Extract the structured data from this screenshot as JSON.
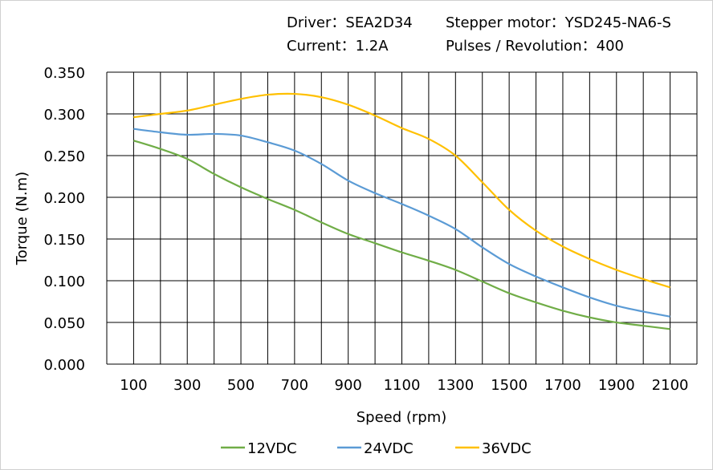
{
  "info": {
    "driver": "Driver：SEA2D34",
    "motor": "Stepper motor：YSD245-NA6-S",
    "current": "Current：1.2A",
    "pulses": "Pulses / Revolution：400"
  },
  "chart_data": {
    "type": "line",
    "title": "",
    "xlabel": "Speed  (rpm)",
    "ylabel": "Torque (N.m)",
    "xlim": [
      0,
      2200
    ],
    "ylim": [
      0,
      0.35
    ],
    "xticks": [
      "100",
      "300",
      "500",
      "700",
      "900",
      "1100",
      "1300",
      "1500",
      "1700",
      "1900",
      "2100"
    ],
    "yticks": [
      "0.000",
      "0.050",
      "0.100",
      "0.150",
      "0.200",
      "0.250",
      "0.300",
      "0.350"
    ],
    "grid": true,
    "legend": "bottom",
    "x": [
      100,
      200,
      300,
      400,
      500,
      600,
      700,
      800,
      900,
      1000,
      1100,
      1200,
      1300,
      1400,
      1500,
      1600,
      1700,
      1800,
      1900,
      2000,
      2100
    ],
    "series": [
      {
        "name": "12VDC",
        "color": "#70ad47",
        "values": [
          0.268,
          0.258,
          0.246,
          0.228,
          0.212,
          0.198,
          0.185,
          0.17,
          0.156,
          0.145,
          0.134,
          0.124,
          0.113,
          0.099,
          0.085,
          0.074,
          0.064,
          0.056,
          0.05,
          0.046,
          0.042
        ]
      },
      {
        "name": "24VDC",
        "color": "#5b9bd5",
        "values": [
          0.282,
          0.278,
          0.275,
          0.276,
          0.274,
          0.266,
          0.256,
          0.24,
          0.22,
          0.205,
          0.192,
          0.178,
          0.162,
          0.14,
          0.12,
          0.105,
          0.092,
          0.08,
          0.07,
          0.063,
          0.057
        ]
      },
      {
        "name": "36VDC",
        "color": "#ffc000",
        "values": [
          0.296,
          0.3,
          0.304,
          0.311,
          0.318,
          0.323,
          0.324,
          0.32,
          0.311,
          0.298,
          0.283,
          0.27,
          0.25,
          0.218,
          0.185,
          0.16,
          0.141,
          0.126,
          0.113,
          0.102,
          0.092
        ]
      }
    ]
  }
}
